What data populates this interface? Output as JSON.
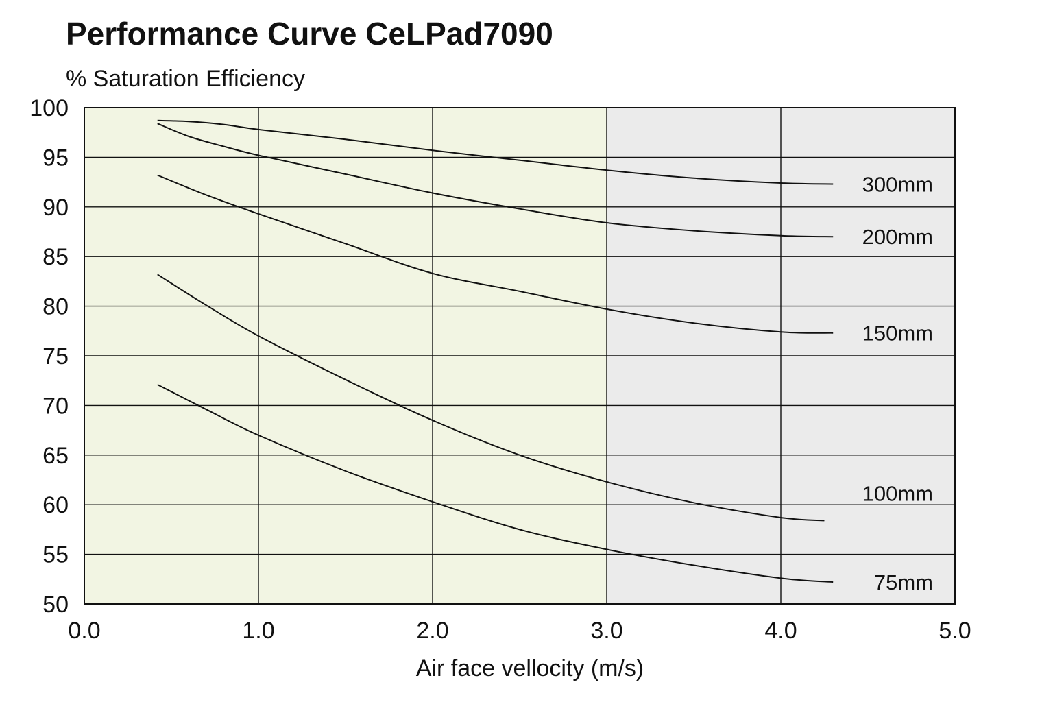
{
  "chart_data": {
    "type": "line",
    "title": "Performance Curve CeLPad7090",
    "ylabel": "% Saturation Efficiency",
    "xlabel": "Air face vellocity (m/s)",
    "xlim": [
      0,
      5
    ],
    "ylim": [
      50,
      100
    ],
    "x_ticks": [
      "0.0",
      "1.0",
      "2.0",
      "3.0",
      "4.0",
      "5.0"
    ],
    "y_ticks": [
      "50",
      "55",
      "60",
      "65",
      "70",
      "75",
      "80",
      "85",
      "90",
      "95",
      "100"
    ],
    "grid": true,
    "recommended_region_color": "#f2f5e3",
    "excess_region_color": "#ebebeb",
    "recommended_region_xmax": 3.0,
    "series": [
      {
        "name": "300mm",
        "x": [
          0.42,
          0.6,
          0.8,
          1.0,
          1.5,
          2.0,
          2.5,
          3.0,
          3.5,
          4.0,
          4.3
        ],
        "y": [
          98.7,
          98.6,
          98.3,
          97.8,
          96.8,
          95.7,
          94.7,
          93.7,
          92.9,
          92.4,
          92.3
        ]
      },
      {
        "name": "200mm",
        "x": [
          0.42,
          0.6,
          0.8,
          1.0,
          1.5,
          2.0,
          2.5,
          3.0,
          3.5,
          4.0,
          4.3
        ],
        "y": [
          98.4,
          97.1,
          96.1,
          95.2,
          93.3,
          91.4,
          89.8,
          88.4,
          87.6,
          87.1,
          87.0
        ]
      },
      {
        "name": "150mm",
        "x": [
          0.42,
          0.7,
          1.0,
          1.5,
          2.0,
          2.5,
          3.0,
          3.5,
          4.0,
          4.3
        ],
        "y": [
          93.2,
          91.2,
          89.3,
          86.3,
          83.3,
          81.5,
          79.7,
          78.3,
          77.4,
          77.3
        ]
      },
      {
        "name": "100mm",
        "x": [
          0.42,
          0.7,
          1.0,
          1.5,
          2.0,
          2.5,
          3.0,
          3.5,
          4.0,
          4.25
        ],
        "y": [
          83.2,
          80.1,
          77.0,
          72.6,
          68.5,
          65.0,
          62.3,
          60.2,
          58.7,
          58.4
        ]
      },
      {
        "name": "75mm",
        "x": [
          0.42,
          0.7,
          1.0,
          1.5,
          2.0,
          2.5,
          3.0,
          3.5,
          4.0,
          4.3
        ],
        "y": [
          72.1,
          69.6,
          67.0,
          63.4,
          60.3,
          57.5,
          55.5,
          53.9,
          52.6,
          52.2
        ]
      }
    ]
  }
}
